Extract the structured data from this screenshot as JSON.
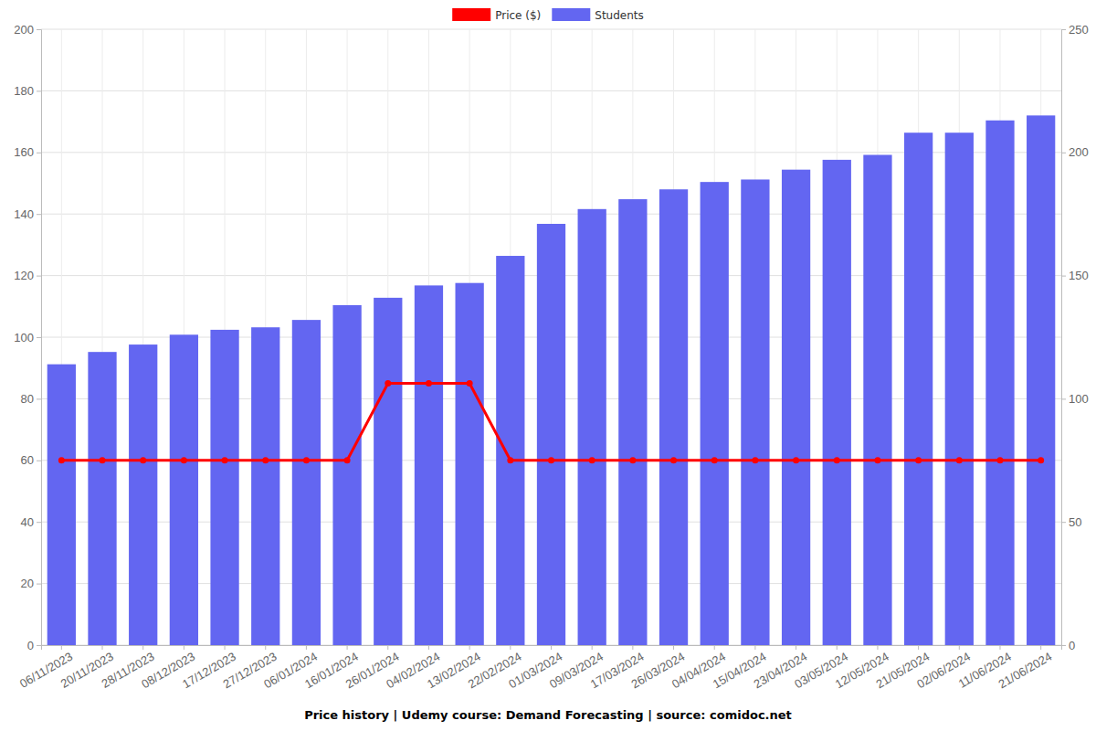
{
  "chart_data": {
    "type": "bar",
    "title": "Price history | Udemy course: Demand Forecasting | source: comidoc.net",
    "categories": [
      "06/11/2023",
      "20/11/2023",
      "28/11/2023",
      "08/12/2023",
      "17/12/2023",
      "27/12/2023",
      "06/01/2024",
      "16/01/2024",
      "26/01/2024",
      "04/02/2024",
      "13/02/2024",
      "22/02/2024",
      "01/03/2024",
      "09/03/2024",
      "17/03/2024",
      "26/03/2024",
      "04/04/2024",
      "15/04/2024",
      "23/04/2024",
      "03/05/2024",
      "12/05/2024",
      "21/05/2024",
      "02/06/2024",
      "11/06/2024",
      "21/06/2024"
    ],
    "series": [
      {
        "name": "Price ($)",
        "type": "line",
        "color": "#ff0000",
        "marker": "circle",
        "values": [
          60,
          60,
          60,
          60,
          60,
          60,
          60,
          60,
          85,
          85,
          85,
          60,
          60,
          60,
          60,
          60,
          60,
          60,
          60,
          60,
          60,
          60,
          60,
          60,
          60
        ]
      },
      {
        "name": "Students",
        "type": "bar",
        "color": "#6366f1",
        "axis": "y2",
        "values": [
          114,
          119,
          122,
          126,
          128,
          129,
          132,
          138,
          141,
          146,
          147,
          158,
          171,
          177,
          181,
          185,
          188,
          189,
          193,
          197,
          199,
          208,
          208,
          213,
          215
        ]
      }
    ],
    "ylim": [
      0,
      200
    ],
    "yticks": [
      0,
      20,
      40,
      60,
      80,
      100,
      120,
      140,
      160,
      180,
      200
    ],
    "y2lim": [
      0,
      250
    ],
    "y2ticks": [
      0,
      50,
      100,
      150,
      200,
      250
    ],
    "grid": true,
    "legend": "top"
  }
}
